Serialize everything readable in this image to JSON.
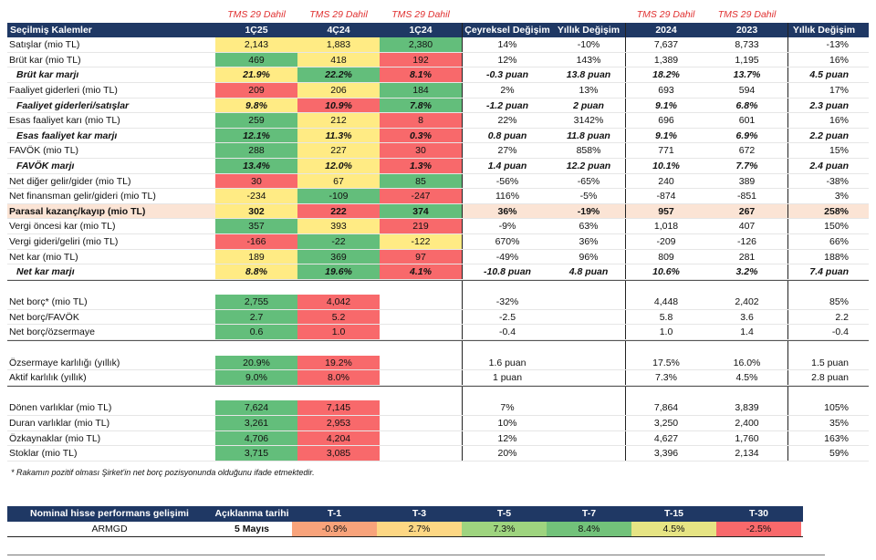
{
  "tms_labels": [
    "TMS 29 Dahil",
    "TMS 29 Dahil",
    "TMS 29 Dahil",
    "TMS 29 Dahil",
    "TMS 29 Dahil"
  ],
  "headers": [
    "Seçilmiş Kalemler",
    "1Ç25",
    "4Ç24",
    "1Ç24",
    "Çeyreksel Değişim",
    "Yıllık Değişim",
    "2024",
    "2023",
    "Yıllık Değişim"
  ],
  "rows": [
    {
      "label": "Satışlar (mio TL)",
      "q1": "2,143",
      "q2": "1,883",
      "q3": "2,380",
      "qoq": "14%",
      "yoy": "-10%",
      "y1": "7,637",
      "y2": "8,733",
      "ych": "-13%"
    },
    {
      "label": "Brüt kar (mio TL)",
      "q1": "469",
      "q2": "418",
      "q3": "192",
      "qoq": "12%",
      "yoy": "143%",
      "y1": "1,389",
      "y2": "1,195",
      "ych": "16%"
    },
    {
      "label": "Brüt kar marjı",
      "q1": "21.9%",
      "q2": "22.2%",
      "q3": "8.1%",
      "qoq": "-0.3 puan",
      "yoy": "13.8 puan",
      "y1": "18.2%",
      "y2": "13.7%",
      "ych": "4.5 puan"
    },
    {
      "label": "Faaliyet giderleri (mio TL)",
      "q1": "209",
      "q2": "206",
      "q3": "184",
      "qoq": "2%",
      "yoy": "13%",
      "y1": "693",
      "y2": "594",
      "ych": "17%"
    },
    {
      "label": "Faaliyet giderleri/satışlar",
      "q1": "9.8%",
      "q2": "10.9%",
      "q3": "7.8%",
      "qoq": "-1.2 puan",
      "yoy": "2 puan",
      "y1": "9.1%",
      "y2": "6.8%",
      "ych": "2.3 puan"
    },
    {
      "label": "Esas faaliyet karı (mio TL)",
      "q1": "259",
      "q2": "212",
      "q3": "8",
      "qoq": "22%",
      "yoy": "3142%",
      "y1": "696",
      "y2": "601",
      "ych": "16%"
    },
    {
      "label": "Esas faaliyet kar marjı",
      "q1": "12.1%",
      "q2": "11.3%",
      "q3": "0.3%",
      "qoq": "0.8 puan",
      "yoy": "11.8 puan",
      "y1": "9.1%",
      "y2": "6.9%",
      "ych": "2.2 puan"
    },
    {
      "label": "FAVÖK (mio TL)",
      "q1": "288",
      "q2": "227",
      "q3": "30",
      "qoq": "27%",
      "yoy": "858%",
      "y1": "771",
      "y2": "672",
      "ych": "15%"
    },
    {
      "label": "FAVÖK marjı",
      "q1": "13.4%",
      "q2": "12.0%",
      "q3": "1.3%",
      "qoq": "1.4 puan",
      "yoy": "12.2 puan",
      "y1": "10.1%",
      "y2": "7.7%",
      "ych": "2.4 puan"
    },
    {
      "label": "Net diğer gelir/gider (mio TL)",
      "q1": "30",
      "q2": "67",
      "q3": "85",
      "qoq": "-56%",
      "yoy": "-65%",
      "y1": "240",
      "y2": "389",
      "ych": "-38%"
    },
    {
      "label": "Net finansman gelir/gideri (mio TL)",
      "q1": "-234",
      "q2": "-109",
      "q3": "-247",
      "qoq": "116%",
      "yoy": "-5%",
      "y1": "-874",
      "y2": "-851",
      "ych": "3%"
    },
    {
      "label": "Parasal kazanç/kayıp (mio TL)",
      "q1": "302",
      "q2": "222",
      "q3": "374",
      "qoq": "36%",
      "yoy": "-19%",
      "y1": "957",
      "y2": "267",
      "ych": "258%"
    },
    {
      "label": "Vergi öncesi kar (mio TL)",
      "q1": "357",
      "q2": "393",
      "q3": "219",
      "qoq": "-9%",
      "yoy": "63%",
      "y1": "1,018",
      "y2": "407",
      "ych": "150%"
    },
    {
      "label": "Vergi gideri/geliri (mio TL)",
      "q1": "-166",
      "q2": "-22",
      "q3": "-122",
      "qoq": "670%",
      "yoy": "36%",
      "y1": "-209",
      "y2": "-126",
      "ych": "66%"
    },
    {
      "label": "Net kar (mio TL)",
      "q1": "189",
      "q2": "369",
      "q3": "97",
      "qoq": "-49%",
      "yoy": "96%",
      "y1": "809",
      "y2": "281",
      "ych": "188%"
    },
    {
      "label": "Net kar marjı",
      "q1": "8.8%",
      "q2": "19.6%",
      "q3": "4.1%",
      "qoq": "-10.8 puan",
      "yoy": "4.8 puan",
      "y1": "10.6%",
      "y2": "3.2%",
      "ych": "7.4 puan"
    }
  ],
  "balance_rows": [
    {
      "label": "Net borç* (mio TL)",
      "q1": "2,755",
      "q2": "4,042",
      "qoq": "-32%",
      "y1": "4,448",
      "y2": "2,402",
      "ych": "85%"
    },
    {
      "label": "Net borç/FAVÖK",
      "q1": "2.7",
      "q2": "5.2",
      "qoq": "-2.5",
      "y1": "5.8",
      "y2": "3.6",
      "ych": "2.2"
    },
    {
      "label": "Net borç/özsermaye",
      "q1": "0.6",
      "q2": "1.0",
      "qoq": "-0.4",
      "y1": "1.0",
      "y2": "1.4",
      "ych": "-0.4"
    }
  ],
  "return_rows": [
    {
      "label": "Özsermaye karlılığı (yıllık)",
      "q1": "20.9%",
      "q2": "19.2%",
      "qoq": "1.6 puan",
      "y1": "17.5%",
      "y2": "16.0%",
      "ych": "1.5 puan"
    },
    {
      "label": "Aktif karlılık (yıllık)",
      "q1": "9.0%",
      "q2": "8.0%",
      "qoq": "1 puan",
      "y1": "7.3%",
      "y2": "4.5%",
      "ych": "2.8 puan"
    }
  ],
  "asset_rows": [
    {
      "label": "Dönen varlıklar (mio TL)",
      "q1": "7,624",
      "q2": "7,145",
      "qoq": "7%",
      "y1": "7,864",
      "y2": "3,839",
      "ych": "105%"
    },
    {
      "label": "Duran varlıklar (mio TL)",
      "q1": "3,261",
      "q2": "2,953",
      "qoq": "10%",
      "y1": "3,250",
      "y2": "2,400",
      "ych": "35%"
    },
    {
      "label": "Özkaynaklar (mio TL)",
      "q1": "4,706",
      "q2": "4,204",
      "qoq": "12%",
      "y1": "4,627",
      "y2": "1,760",
      "ych": "163%"
    },
    {
      "label": "Stoklar (mio TL)",
      "q1": "3,715",
      "q2": "3,085",
      "qoq": "20%",
      "y1": "3,396",
      "y2": "2,134",
      "ych": "59%"
    }
  ],
  "footnote": "* Rakamın pozitif olması Şirket'in net borç pozisyonunda olduğunu ifade etmektedir.",
  "performance": {
    "headers": [
      "Nominal hisse performans gelişimi",
      "Açıklanma tarihi",
      "T-1",
      "T-3",
      "T-5",
      "T-7",
      "T-15",
      "T-30"
    ],
    "ticker": "ARMGD",
    "date": "5 Mayıs",
    "values": [
      "-0.9%",
      "2.7%",
      "7.3%",
      "8.4%",
      "4.5%",
      "-2.5%"
    ]
  },
  "colors": {
    "header_bg": "#1f3864",
    "green": "#63be7b",
    "yellow": "#ffeb84",
    "red": "#f8696b",
    "tms_text": "#e03030",
    "highlight_row": "#fbe4d5"
  }
}
